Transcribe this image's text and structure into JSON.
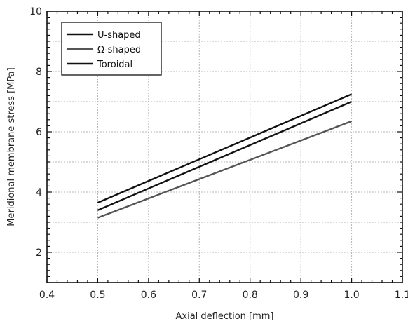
{
  "chart_data": {
    "type": "line",
    "title": "",
    "xlabel": "Axial deflection [mm]",
    "ylabel": "Meridional membrane stress [MPa]",
    "xlim": [
      0.4,
      1.1
    ],
    "ylim": [
      1,
      10
    ],
    "xticks": [
      0.4,
      0.5,
      0.6,
      0.7,
      0.8,
      0.9,
      1.0,
      1.1
    ],
    "xtick_labels": [
      "0.4",
      "0.5",
      "0.6",
      "0.7",
      "0.8",
      "0.9",
      "1.0",
      "1.1"
    ],
    "yticks": [
      2,
      4,
      6,
      8,
      10
    ],
    "ytick_labels": [
      "2",
      "4",
      "6",
      "8",
      "10"
    ],
    "grid": true,
    "legend_position": "top-left",
    "series": [
      {
        "name": "U-shaped",
        "color": "#111111",
        "x": [
          0.5,
          1.0
        ],
        "y": [
          3.4,
          7.0
        ]
      },
      {
        "name": "Ω-shaped",
        "color": "#555555",
        "x": [
          0.5,
          1.0
        ],
        "y": [
          3.15,
          6.35
        ]
      },
      {
        "name": "Toroidal",
        "color": "#111111",
        "x": [
          0.5,
          1.0
        ],
        "y": [
          3.65,
          7.25
        ]
      }
    ]
  }
}
